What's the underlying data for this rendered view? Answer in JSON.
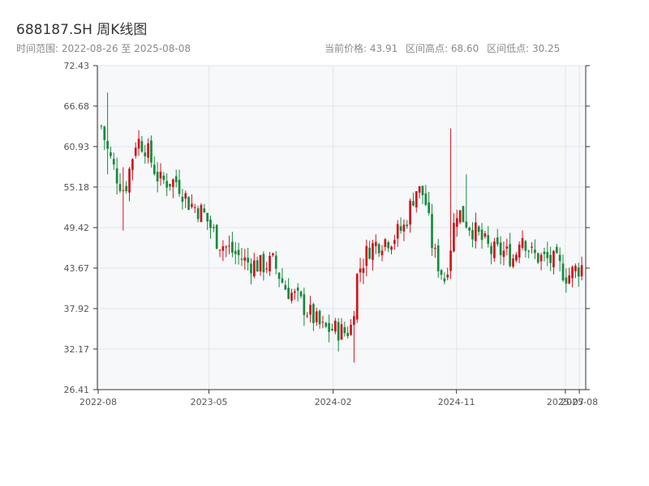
{
  "header": {
    "title": "688187.SH 周K线图",
    "subtitle": "时间范围: 2022-08-26 至 2025-08-08",
    "current_price": "当前价格: 43.91",
    "high": "区间高点: 68.60",
    "low": "区间低点: 30.25"
  },
  "colors": {
    "up": "#d0141c",
    "down": "#178a3c",
    "plot_bg": "#f6f8fa",
    "grid": "#e3e6ea",
    "axis": "#333333"
  },
  "chart_data": {
    "type": "candlestick",
    "title": "688187.SH 周K线图",
    "xlabel": "",
    "ylabel": "",
    "ylim": [
      26.41,
      72.43
    ],
    "yticks": [
      "72.43",
      "66.68",
      "60.93",
      "55.18",
      "49.42",
      "43.67",
      "37.92",
      "32.17",
      "26.41"
    ],
    "xticks": [
      "2022-08",
      "2023-05",
      "2024-02",
      "2024-11",
      "2025-07",
      "2025-08"
    ],
    "grid": true,
    "start_date": "2022-08-26",
    "end_date": "2025-08-08",
    "high": 68.6,
    "low": 30.25,
    "last_close": 43.91,
    "close_path": [
      [
        0,
        63.8
      ],
      [
        2,
        60.5
      ],
      [
        5,
        57.0
      ],
      [
        8,
        54.6
      ],
      [
        12,
        62.0
      ],
      [
        15,
        61.0
      ],
      [
        20,
        56.0
      ],
      [
        26,
        56.0
      ],
      [
        30,
        53.0
      ],
      [
        35,
        51.5
      ],
      [
        40,
        47.5
      ],
      [
        45,
        46.0
      ],
      [
        50,
        44.5
      ],
      [
        55,
        44.0
      ],
      [
        59,
        44.5
      ],
      [
        63,
        41.0
      ],
      [
        68,
        39.0
      ],
      [
        72,
        37.0
      ],
      [
        76,
        35.0
      ],
      [
        80,
        35.0
      ],
      [
        84,
        34.5
      ],
      [
        86,
        35.5
      ],
      [
        88,
        43.0
      ],
      [
        92,
        46.5
      ],
      [
        96,
        47.5
      ],
      [
        100,
        48.0
      ],
      [
        104,
        49.5
      ],
      [
        108,
        55.0
      ],
      [
        111,
        54.0
      ],
      [
        114,
        46.0
      ],
      [
        118,
        42.0
      ],
      [
        122,
        52.0
      ],
      [
        126,
        50.0
      ],
      [
        130,
        48.0
      ],
      [
        134,
        46.0
      ],
      [
        138,
        46.0
      ],
      [
        142,
        45.0
      ],
      [
        144,
        49.0
      ],
      [
        148,
        45.5
      ],
      [
        152,
        45.0
      ],
      [
        156,
        44.5
      ],
      [
        160,
        42.5
      ],
      [
        163,
        43.5
      ],
      [
        165,
        43.91
      ]
    ],
    "spikes": [
      [
        120,
        63.5,
        50.0
      ],
      [
        125,
        57.0,
        49.5
      ],
      [
        2,
        68.6,
        57.0
      ],
      [
        8,
        58.0,
        49.0
      ],
      [
        87,
        36.0,
        30.25
      ]
    ]
  }
}
